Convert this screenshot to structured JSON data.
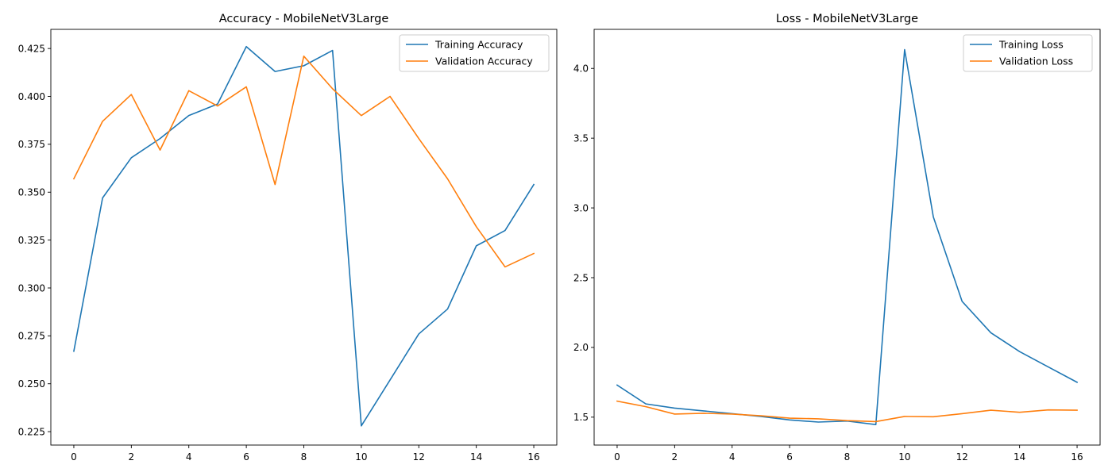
{
  "chart_data": [
    {
      "type": "line",
      "title": "Accuracy - MobileNetV3Large",
      "xlabel": "",
      "ylabel": "",
      "xlim": [
        -0.8,
        16.8
      ],
      "ylim": [
        0.218,
        0.435
      ],
      "xticks": [
        0,
        2,
        4,
        6,
        8,
        10,
        12,
        14,
        16
      ],
      "yticks": [
        0.225,
        0.25,
        0.275,
        0.3,
        0.325,
        0.35,
        0.375,
        0.4,
        0.425
      ],
      "ytick_labels": [
        "0.225",
        "0.250",
        "0.275",
        "0.300",
        "0.325",
        "0.350",
        "0.375",
        "0.400",
        "0.425"
      ],
      "grid": false,
      "legend_position": "upper right",
      "x": [
        0,
        1,
        2,
        3,
        4,
        5,
        6,
        7,
        8,
        9,
        10,
        11,
        12,
        13,
        14,
        15,
        16
      ],
      "series": [
        {
          "name": "Training Accuracy",
          "color": "#1f77b4",
          "values": [
            0.267,
            0.347,
            0.368,
            0.378,
            0.39,
            0.396,
            0.426,
            0.413,
            0.416,
            0.424,
            0.228,
            0.252,
            0.276,
            0.289,
            0.322,
            0.33,
            0.354
          ]
        },
        {
          "name": "Validation Accuracy",
          "color": "#ff7f0e",
          "values": [
            0.357,
            0.387,
            0.401,
            0.372,
            0.403,
            0.395,
            0.405,
            0.354,
            0.421,
            0.404,
            0.39,
            0.4,
            0.378,
            0.357,
            0.332,
            0.311,
            0.318
          ]
        }
      ]
    },
    {
      "type": "line",
      "title": "Loss - MobileNetV3Large",
      "xlabel": "",
      "ylabel": "",
      "xlim": [
        -0.8,
        16.8
      ],
      "ylim": [
        1.3,
        4.28
      ],
      "xticks": [
        0,
        2,
        4,
        6,
        8,
        10,
        12,
        14,
        16
      ],
      "yticks": [
        1.5,
        2.0,
        2.5,
        3.0,
        3.5,
        4.0
      ],
      "ytick_labels": [
        "1.5",
        "2.0",
        "2.5",
        "3.0",
        "3.5",
        "4.0"
      ],
      "grid": false,
      "legend_position": "upper right",
      "x": [
        0,
        1,
        2,
        3,
        4,
        5,
        6,
        7,
        8,
        9,
        10,
        11,
        12,
        13,
        14,
        15,
        16
      ],
      "series": [
        {
          "name": "Training Loss",
          "color": "#1f77b4",
          "values": [
            1.73,
            1.595,
            1.565,
            1.545,
            1.525,
            1.505,
            1.48,
            1.465,
            1.472,
            1.447,
            4.135,
            2.935,
            2.33,
            2.105,
            1.97,
            1.86,
            1.75
          ]
        },
        {
          "name": "Validation Loss",
          "color": "#ff7f0e",
          "values": [
            1.615,
            1.575,
            1.522,
            1.528,
            1.522,
            1.51,
            1.493,
            1.488,
            1.475,
            1.468,
            1.505,
            1.503,
            1.525,
            1.55,
            1.535,
            1.552,
            1.55
          ]
        }
      ]
    }
  ]
}
